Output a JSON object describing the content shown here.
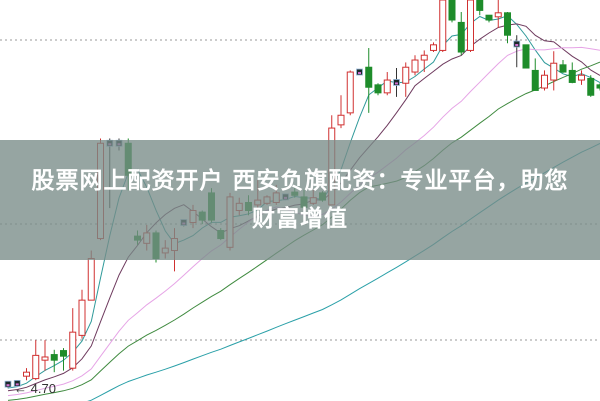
{
  "banner": {
    "title": "股票网上配资开户 西安负旗配资：专业平台，助您财富增值"
  },
  "chart_data": {
    "type": "candlestick",
    "price_label": "4.70",
    "ylim": [
      4.54,
      9.55
    ],
    "grid": "dotted horizontal",
    "colors": {
      "up": "#d03030",
      "down": "#1e8c2a",
      "ma5": "#2f9a9a",
      "ma10": "#6e3a5e",
      "ma20": "#e6a4e6",
      "ma30": "#3f8a3f",
      "ma60": "#2aa0a8"
    },
    "moving_averages": [
      5,
      10,
      20,
      30,
      60
    ],
    "candles": [
      [
        4.74,
        4.75,
        4.78,
        4.7
      ],
      [
        4.76,
        4.76,
        4.8,
        4.72
      ],
      [
        4.85,
        4.9,
        4.95,
        4.8
      ],
      [
        4.82,
        5.11,
        5.3,
        4.8
      ],
      [
        5.05,
        5.09,
        5.3,
        4.92
      ],
      [
        5.12,
        5.05,
        5.18,
        4.9
      ],
      [
        5.17,
        5.1,
        5.2,
        4.92
      ],
      [
        4.95,
        5.4,
        5.7,
        4.92
      ],
      [
        5.36,
        5.8,
        5.93,
        5.32
      ],
      [
        5.8,
        6.32,
        6.42,
        5.8
      ],
      [
        6.57,
        7.76,
        7.82,
        6.55
      ],
      [
        7.76,
        7.75,
        7.82,
        6.95
      ],
      [
        7.76,
        7.75,
        7.82,
        7.67
      ],
      [
        7.76,
        7.36,
        7.82,
        7.17
      ],
      [
        6.6,
        6.55,
        6.67,
        6.49
      ],
      [
        6.51,
        6.64,
        6.74,
        6.42
      ],
      [
        6.64,
        6.32,
        6.67,
        6.27
      ],
      [
        6.39,
        6.45,
        6.55,
        6.32
      ],
      [
        6.42,
        6.57,
        6.7,
        6.16
      ],
      [
        6.77,
        6.77,
        6.8,
        6.72
      ],
      [
        6.77,
        6.92,
        6.99,
        6.7
      ],
      [
        6.9,
        6.8,
        6.92,
        6.75
      ],
      [
        7.14,
        6.8,
        7.2,
        6.77
      ],
      [
        6.67,
        6.57,
        6.7,
        6.55
      ],
      [
        6.46,
        7.09,
        7.14,
        6.42
      ],
      [
        6.92,
        7.01,
        7.08,
        6.86
      ],
      [
        7.02,
        6.92,
        7.11,
        6.86
      ],
      [
        6.99,
        7.05,
        7.3,
        6.9
      ],
      [
        7.01,
        7.09,
        7.11,
        6.99
      ],
      [
        7.02,
        7.14,
        7.24,
        6.99
      ],
      [
        7.09,
        7.09,
        7.12,
        7.05
      ],
      [
        7.15,
        7.11,
        7.2,
        7.08
      ],
      [
        7.09,
        6.96,
        7.18,
        6.92
      ],
      [
        7.01,
        7.08,
        7.18,
        6.99
      ],
      [
        7.14,
        7.05,
        7.16,
        7.03
      ],
      [
        6.99,
        7.95,
        8.11,
        6.99
      ],
      [
        7.99,
        8.11,
        8.36,
        7.95
      ],
      [
        8.14,
        8.65,
        8.67,
        8.11
      ],
      [
        8.65,
        8.65,
        8.65,
        8.65
      ],
      [
        8.71,
        8.46,
        8.95,
        8.14
      ],
      [
        8.49,
        8.39,
        8.51,
        8.36
      ],
      [
        8.39,
        8.55,
        8.65,
        8.36
      ],
      [
        8.52,
        8.52,
        8.7,
        8.34
      ],
      [
        8.51,
        8.71,
        8.77,
        8.34
      ],
      [
        8.65,
        8.8,
        8.86,
        8.61
      ],
      [
        8.8,
        8.86,
        8.92,
        8.65
      ],
      [
        8.92,
        8.99,
        9.02,
        8.9
      ],
      [
        8.92,
        9.55,
        9.55,
        8.9
      ],
      [
        9.55,
        9.3,
        9.55,
        9.27
      ],
      [
        9.27,
        8.9,
        9.4,
        8.86
      ],
      [
        8.92,
        9.55,
        9.55,
        8.9
      ],
      [
        9.55,
        9.42,
        9.55,
        9.36
      ],
      [
        9.36,
        9.3,
        9.36,
        9.27
      ],
      [
        9.34,
        9.39,
        9.55,
        9.2
      ],
      [
        9.39,
        9.11,
        9.4,
        9.01
      ],
      [
        9.0,
        9.0,
        9.11,
        8.71
      ],
      [
        8.99,
        8.7,
        8.99,
        8.7
      ],
      [
        8.67,
        8.42,
        8.82,
        8.42
      ],
      [
        8.45,
        8.61,
        8.67,
        8.42
      ],
      [
        8.55,
        8.76,
        8.91,
        8.42
      ],
      [
        8.74,
        8.65,
        8.8,
        8.64
      ],
      [
        8.67,
        8.52,
        8.77,
        8.51
      ],
      [
        8.55,
        8.61,
        8.67,
        8.49
      ],
      [
        8.57,
        8.36,
        8.61,
        8.34
      ],
      [
        8.49,
        8.45,
        8.51,
        8.42
      ]
    ]
  }
}
